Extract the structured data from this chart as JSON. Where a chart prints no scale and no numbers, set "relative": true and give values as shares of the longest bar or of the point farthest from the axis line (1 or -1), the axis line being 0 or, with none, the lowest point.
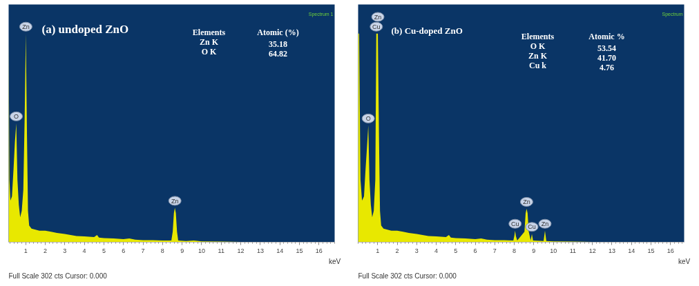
{
  "chart_data": [
    {
      "type": "area",
      "title": "(a) undoped ZnO",
      "xlabel": "keV",
      "relative": true,
      "xlim": [
        0.13,
        16.8
      ],
      "xticks": [
        1,
        2,
        3,
        4,
        5,
        6,
        7,
        8,
        9,
        10,
        11,
        12,
        13,
        14,
        15,
        16
      ],
      "series": [
        {
          "color": "#e8e800",
          "x": [
            0.13,
            0.17,
            0.22,
            0.3,
            0.38,
            0.45,
            0.52,
            0.58,
            0.65,
            0.72,
            0.8,
            0.88,
            0.95,
            1.01,
            1.07,
            1.12,
            1.18,
            1.3,
            1.5,
            1.7,
            2.0,
            2.3,
            2.6,
            3.0,
            3.3,
            3.6,
            4.0,
            4.5,
            4.65,
            4.75,
            5.0,
            5.5,
            6.0,
            6.3,
            6.6,
            7.0,
            7.5,
            8.0,
            8.45,
            8.52,
            8.58,
            8.63,
            8.68,
            8.74,
            8.8,
            9.2,
            9.6,
            10,
            11,
            12,
            13,
            14,
            15,
            16,
            16.8
          ],
          "values": [
            1.0,
            0.3,
            0.2,
            0.22,
            0.35,
            0.48,
            0.57,
            0.3,
            0.18,
            0.12,
            0.15,
            0.25,
            0.6,
            1.0,
            0.5,
            0.15,
            0.08,
            0.065,
            0.06,
            0.055,
            0.055,
            0.05,
            0.045,
            0.04,
            0.035,
            0.03,
            0.028,
            0.025,
            0.035,
            0.022,
            0.02,
            0.018,
            0.015,
            0.018,
            0.012,
            0.01,
            0.01,
            0.008,
            0.008,
            0.05,
            0.14,
            0.165,
            0.14,
            0.05,
            0.008,
            0.006,
            0.008,
            0.004,
            0.003,
            0.002,
            0.002,
            0.001,
            0.001,
            0.001,
            0.001
          ]
        }
      ],
      "annotations": [
        "Spectrum 1",
        "Full Scale 302 cts Cursor: 0.000",
        "Elements",
        "Atomic (%)",
        "Zn K",
        "35.18",
        "O K",
        "64.82",
        {
          "text": "O",
          "x": 0.52,
          "y": 0.57
        },
        {
          "text": "Zn",
          "x": 1.01,
          "y": 1.0
        },
        {
          "text": "Zn",
          "x": 8.63,
          "y": 0.165
        }
      ]
    },
    {
      "type": "area",
      "title": "(b) Cu-doped ZnO",
      "xlabel": "keV",
      "relative": true,
      "xlim": [
        0.0,
        16.7
      ],
      "xticks": [
        1,
        2,
        3,
        4,
        5,
        6,
        7,
        8,
        9,
        10,
        11,
        12,
        13,
        14,
        15,
        16
      ],
      "series": [
        {
          "color": "#e8e800",
          "x": [
            0.0,
            0.05,
            0.12,
            0.2,
            0.3,
            0.38,
            0.45,
            0.52,
            0.58,
            0.65,
            0.72,
            0.8,
            0.88,
            0.93,
            1.01,
            1.07,
            1.12,
            1.18,
            1.3,
            1.5,
            1.7,
            2.0,
            2.3,
            2.6,
            3.0,
            3.3,
            3.6,
            4.0,
            4.5,
            4.65,
            4.75,
            5.0,
            5.5,
            6.0,
            6.3,
            6.6,
            7.0,
            7.5,
            7.95,
            8.0,
            8.04,
            8.08,
            8.15,
            8.52,
            8.58,
            8.63,
            8.68,
            8.74,
            8.84,
            8.9,
            8.96,
            9.5,
            9.57,
            9.64,
            10,
            11,
            12,
            13,
            14,
            15,
            16,
            16.7
          ],
          "values": [
            1.0,
            1.0,
            0.3,
            0.2,
            0.22,
            0.35,
            0.45,
            0.56,
            0.3,
            0.18,
            0.12,
            0.15,
            0.3,
            1.0,
            1.0,
            0.5,
            0.15,
            0.08,
            0.065,
            0.06,
            0.055,
            0.055,
            0.05,
            0.045,
            0.04,
            0.035,
            0.03,
            0.028,
            0.025,
            0.035,
            0.022,
            0.02,
            0.018,
            0.015,
            0.018,
            0.012,
            0.01,
            0.01,
            0.008,
            0.03,
            0.055,
            0.03,
            0.008,
            0.05,
            0.14,
            0.16,
            0.14,
            0.05,
            0.008,
            0.04,
            0.008,
            0.006,
            0.055,
            0.006,
            0.004,
            0.003,
            0.002,
            0.002,
            0.001,
            0.001,
            0.001,
            0.001
          ]
        }
      ],
      "annotations": [
        "Spectrum",
        "Full Scale 302 cts Cursor: 0.000",
        "Elements",
        "Atomic %",
        "O K",
        "53.54",
        "Zn K",
        "41.70",
        "Cu k",
        "4.76",
        {
          "text": "O",
          "x": 0.52,
          "y": 0.56
        },
        {
          "text": "Cu",
          "x": 0.93,
          "y": 1.0
        },
        {
          "text": "Zn",
          "x": 1.01,
          "y": 1.0
        },
        {
          "text": "Cu",
          "x": 8.04,
          "y": 0.055
        },
        {
          "text": "Zn",
          "x": 8.63,
          "y": 0.16
        },
        {
          "text": "Cu",
          "x": 8.9,
          "y": 0.04
        },
        {
          "text": "Zn",
          "x": 9.57,
          "y": 0.055
        }
      ]
    }
  ]
}
